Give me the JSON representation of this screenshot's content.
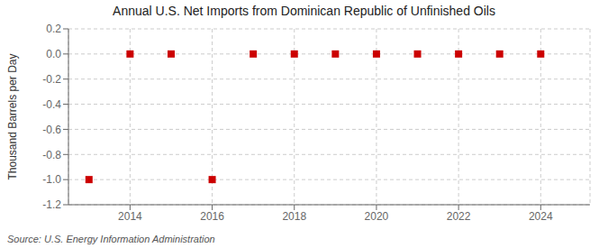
{
  "chart_data": {
    "type": "scatter",
    "title": "Annual U.S. Net Imports from Dominican Republic of Unfinished Oils",
    "ylabel": "Thousand Barrels per Day",
    "annotations": [
      "Source: U.S. Energy Information Administration"
    ],
    "x": [
      2013,
      2014,
      2015,
      2016,
      2017,
      2018,
      2019,
      2020,
      2021,
      2022,
      2023,
      2024
    ],
    "values": [
      -1.0,
      0.0,
      0.0,
      -1.0,
      0.0,
      0.0,
      0.0,
      0.0,
      0.0,
      0.0,
      0.0,
      0.0
    ],
    "xlim": [
      2012.5,
      2025.2
    ],
    "xticks": [
      2014,
      2016,
      2018,
      2020,
      2022,
      2024
    ],
    "ylim": [
      -1.2,
      0.2
    ],
    "yticks": [
      0.2,
      {
        "value": 0.0,
        "label": "0.0"
      },
      -0.2,
      -0.4,
      -0.6,
      -0.8,
      {
        "value": -1.0,
        "label": "-1.0"
      },
      -1.2
    ],
    "color": "#cc0000",
    "marker": "square",
    "grid": true
  }
}
